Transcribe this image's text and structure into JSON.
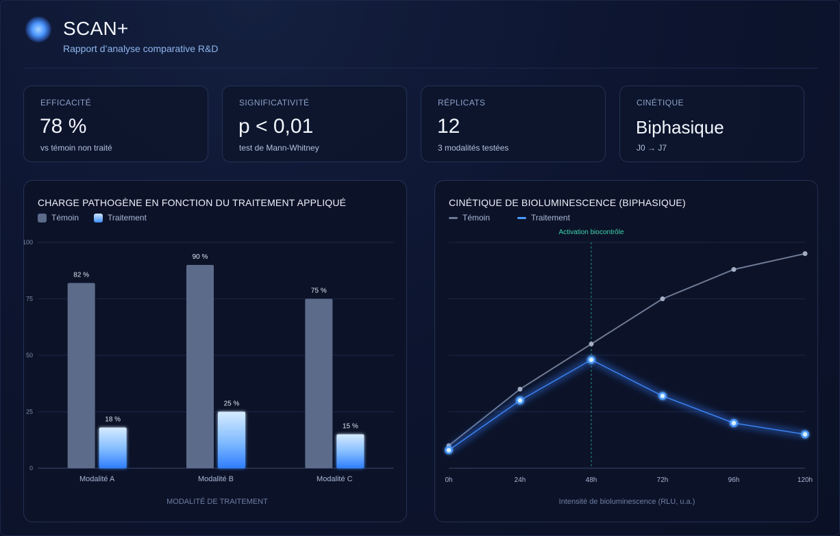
{
  "header": {
    "title": "SCAN+",
    "subtitle": "Rapport d’analyse comparative R&D"
  },
  "kpis": [
    {
      "label": "EFFICACITÉ",
      "value": "78 %",
      "sub": "vs témoin non traité"
    },
    {
      "label": "SIGNIFICATIVITÉ",
      "value": "p < 0,01",
      "sub": "test de Mann-Whitney"
    },
    {
      "label": "RÉPLICATS",
      "value": "12",
      "sub": "3 modalités testées"
    },
    {
      "label": "CINÉTIQUE",
      "value": "Biphasique",
      "sub": "J0 → J7"
    }
  ],
  "colors": {
    "control": "#5c6b8a",
    "treatment": "#4a9bff",
    "marker_line": "#2bb39a",
    "grid": "#1c2746"
  },
  "chart_data": [
    {
      "type": "bar",
      "title": "CHARGE PATHOGÈNE EN FONCTION DU TRAITEMENT APPLIQUÉ",
      "xlabel": "MODALITÉ DE TRAITEMENT",
      "ylabel": "",
      "ylim": [
        0,
        100
      ],
      "yticks": [
        0,
        25,
        50,
        75,
        100
      ],
      "grid": true,
      "legend_position": "top-left",
      "categories": [
        "Modalité A",
        "Modalité B",
        "Modalité C"
      ],
      "series": [
        {
          "name": "Témoin",
          "values": [
            82,
            90,
            75
          ],
          "labels": [
            "82 %",
            "90 %",
            "75 %"
          ]
        },
        {
          "name": "Traitement",
          "values": [
            18,
            25,
            15
          ],
          "labels": [
            "18 %",
            "25 %",
            "15 %"
          ]
        }
      ]
    },
    {
      "type": "line",
      "title": "CINÉTIQUE DE BIOLUMINESCENCE (BIPHASIQUE)",
      "xlabel": "Intensité de bioluminescence (RLU, u.a.)",
      "ylabel": "",
      "ylim": [
        0,
        100
      ],
      "grid": true,
      "legend_position": "top-left",
      "x": [
        "0h",
        "24h",
        "48h",
        "72h",
        "96h",
        "120h"
      ],
      "series": [
        {
          "name": "Témoin",
          "values": [
            10,
            35,
            55,
            75,
            88,
            95
          ]
        },
        {
          "name": "Traitement",
          "values": [
            8,
            30,
            48,
            32,
            20,
            15
          ]
        }
      ],
      "annotations": [
        {
          "x": "48h",
          "text": "Activation biocontrôle"
        }
      ]
    }
  ]
}
